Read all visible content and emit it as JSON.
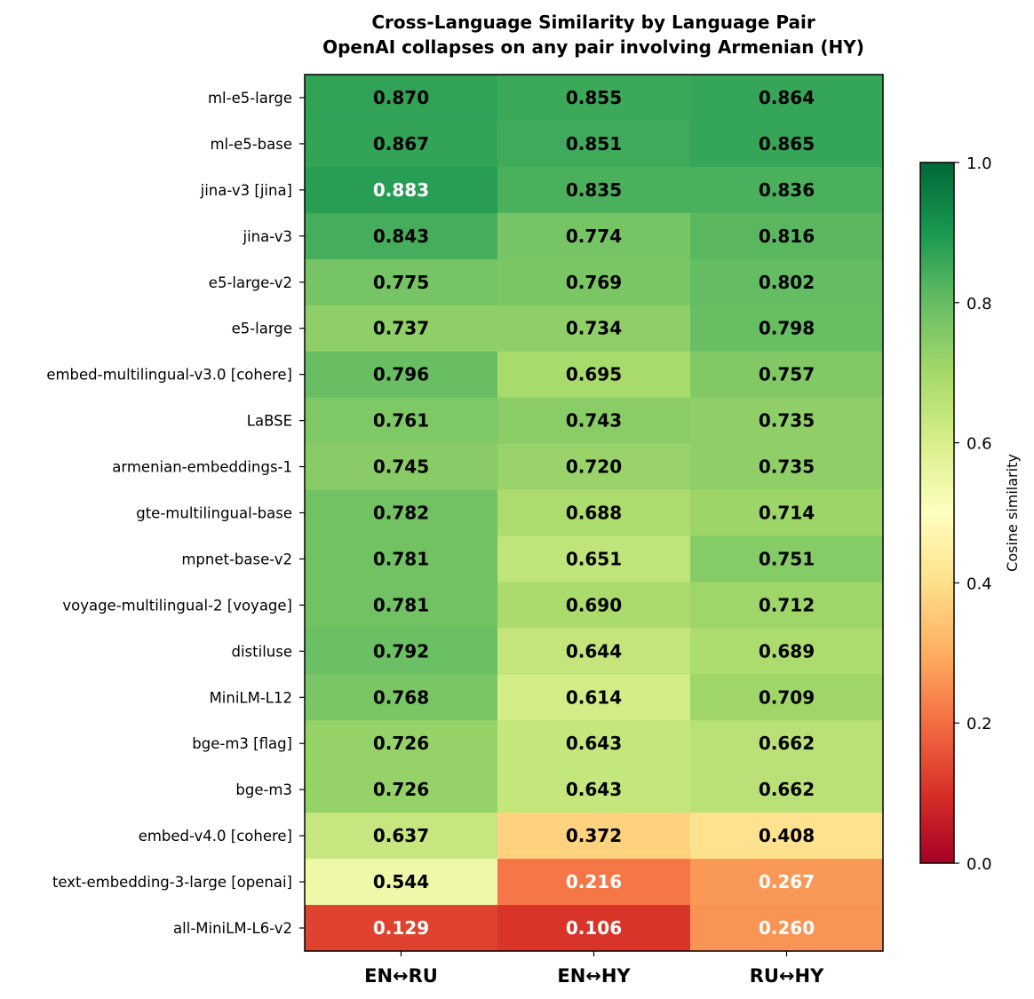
{
  "chart_data": {
    "type": "heatmap",
    "title": "Cross-Language Similarity by Language Pair",
    "subtitle": "OpenAI collapses on any pair involving Armenian (HY)",
    "x_categories": [
      "EN↔RU",
      "EN↔HY",
      "RU↔HY"
    ],
    "y_categories": [
      "ml-e5-large",
      "ml-e5-base",
      "jina-v3 [jina]",
      "jina-v3",
      "e5-large-v2",
      "e5-large",
      "embed-multilingual-v3.0 [cohere]",
      "LaBSE",
      "armenian-embeddings-1",
      "gte-multilingual-base",
      "mpnet-base-v2",
      "voyage-multilingual-2 [voyage]",
      "distiluse",
      "MiniLM-L12",
      "bge-m3 [flag]",
      "bge-m3",
      "embed-v4.0 [cohere]",
      "text-embedding-3-large [openai]",
      "all-MiniLM-L6-v2"
    ],
    "values": [
      [
        0.87,
        0.855,
        0.864
      ],
      [
        0.867,
        0.851,
        0.865
      ],
      [
        0.883,
        0.835,
        0.836
      ],
      [
        0.843,
        0.774,
        0.816
      ],
      [
        0.775,
        0.769,
        0.802
      ],
      [
        0.737,
        0.734,
        0.798
      ],
      [
        0.796,
        0.695,
        0.757
      ],
      [
        0.761,
        0.743,
        0.735
      ],
      [
        0.745,
        0.72,
        0.735
      ],
      [
        0.782,
        0.688,
        0.714
      ],
      [
        0.781,
        0.651,
        0.751
      ],
      [
        0.781,
        0.69,
        0.712
      ],
      [
        0.792,
        0.644,
        0.689
      ],
      [
        0.768,
        0.614,
        0.709
      ],
      [
        0.726,
        0.643,
        0.662
      ],
      [
        0.726,
        0.643,
        0.662
      ],
      [
        0.637,
        0.372,
        0.408
      ],
      [
        0.544,
        0.216,
        0.267
      ],
      [
        0.129,
        0.106,
        0.26
      ]
    ],
    "value_format": "0.000",
    "colormap": "RdYlGn",
    "colorbar": {
      "label": "Cosine similarity",
      "range": [
        0.0,
        1.0
      ],
      "ticks": [
        "0.0",
        "0.2",
        "0.4",
        "0.6",
        "0.8",
        "1.0"
      ]
    },
    "colors": {
      "low": "#a50026",
      "mid": "#ffffbf",
      "high": "#006837",
      "label_dark": "#000000",
      "label_light": "#ffffff"
    }
  }
}
